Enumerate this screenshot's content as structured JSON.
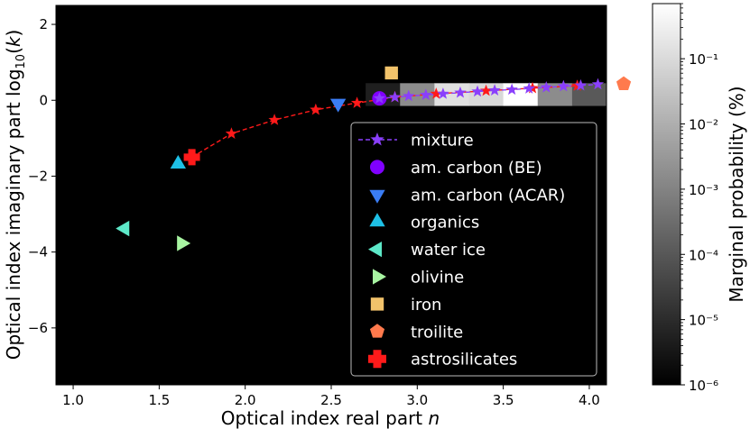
{
  "chart_data": {
    "type": "scatter",
    "xlabel": "Optical index real part n",
    "ylabel": "Optical index imaginary part log10(k)",
    "xlim": [
      0.9,
      4.1
    ],
    "ylim": [
      -7.5,
      2.5
    ],
    "x_ticks": [
      "1.0",
      "1.5",
      "2.0",
      "2.5",
      "3.0",
      "3.5",
      "4.0"
    ],
    "y_ticks": [
      "−6",
      "−4",
      "−2",
      "0",
      "2"
    ],
    "background": "black",
    "legend_position": "lower-right",
    "colorbar": {
      "label": "Marginal probability (%)",
      "scale": "log",
      "range": [
        1e-06,
        0.7
      ],
      "ticks": [
        "10⁻⁶",
        "10⁻⁵",
        "10⁻⁴",
        "10⁻³",
        "10⁻²",
        "10⁻¹"
      ]
    },
    "heatmap_row": {
      "y_range": [
        -0.15,
        0.45
      ],
      "x_edges": [
        2.7,
        2.9,
        3.1,
        3.3,
        3.5,
        3.7,
        3.9,
        4.1
      ],
      "gray_levels": [
        0.12,
        0.55,
        0.88,
        0.85,
        1.0,
        0.55,
        0.35,
        0.28
      ]
    },
    "series": [
      {
        "name": "mixture",
        "marker": "star",
        "color": "#8a3ffc",
        "x": [
          2.78,
          2.87,
          2.95,
          3.05,
          3.15,
          3.25,
          3.35,
          3.45,
          3.55,
          3.65,
          3.75,
          3.85,
          3.95,
          4.05
        ],
        "y": [
          0.05,
          0.08,
          0.11,
          0.14,
          0.17,
          0.2,
          0.23,
          0.26,
          0.28,
          0.31,
          0.34,
          0.37,
          0.39,
          0.42
        ]
      },
      {
        "name": "astrosilicates trend",
        "marker": "star",
        "color": "#ff1a1a",
        "x": [
          1.69,
          1.92,
          2.17,
          2.41,
          2.65,
          2.87,
          3.11,
          3.4,
          3.67,
          3.93
        ],
        "y": [
          -1.5,
          -0.88,
          -0.52,
          -0.25,
          -0.07,
          0.08,
          0.17,
          0.25,
          0.32,
          0.38
        ]
      }
    ],
    "points": [
      {
        "name": "am. carbon (BE)",
        "marker": "circle",
        "color": "#8000ff",
        "x": 2.78,
        "y": 0.05
      },
      {
        "name": "am. carbon (ACAR)",
        "marker": "triangle-down",
        "color": "#3a7df5",
        "x": 2.54,
        "y": -0.08
      },
      {
        "name": "organics",
        "marker": "triangle-up",
        "color": "#1ec0e6",
        "x": 1.61,
        "y": -1.68
      },
      {
        "name": "water ice",
        "marker": "triangle-left",
        "color": "#5de8c8",
        "x": 1.3,
        "y": -3.38
      },
      {
        "name": "olivine",
        "marker": "triangle-right",
        "color": "#a8f5a2",
        "x": 1.63,
        "y": -3.77
      },
      {
        "name": "iron",
        "marker": "square",
        "color": "#f2c36b",
        "x": 2.85,
        "y": 0.72
      },
      {
        "name": "troilite",
        "marker": "pentagon",
        "color": "#ff7a4d",
        "x": 4.2,
        "y": 0.43
      },
      {
        "name": "astrosilicates",
        "marker": "plus",
        "color": "#ff1a1a",
        "x": 1.69,
        "y": -1.5
      }
    ],
    "legend": [
      {
        "label": "mixture",
        "marker": "star-line",
        "color": "#8a3ffc"
      },
      {
        "label": "am. carbon (BE)",
        "marker": "circle",
        "color": "#8000ff"
      },
      {
        "label": "am. carbon (ACAR)",
        "marker": "triangle-down",
        "color": "#3a7df5"
      },
      {
        "label": "organics",
        "marker": "triangle-up",
        "color": "#1ec0e6"
      },
      {
        "label": "water ice",
        "marker": "triangle-left",
        "color": "#5de8c8"
      },
      {
        "label": "olivine",
        "marker": "triangle-right",
        "color": "#a8f5a2"
      },
      {
        "label": "iron",
        "marker": "square",
        "color": "#f2c36b"
      },
      {
        "label": "troilite",
        "marker": "pentagon",
        "color": "#ff7a4d"
      },
      {
        "label": "astrosilicates",
        "marker": "plus",
        "color": "#ff1a1a"
      }
    ]
  }
}
